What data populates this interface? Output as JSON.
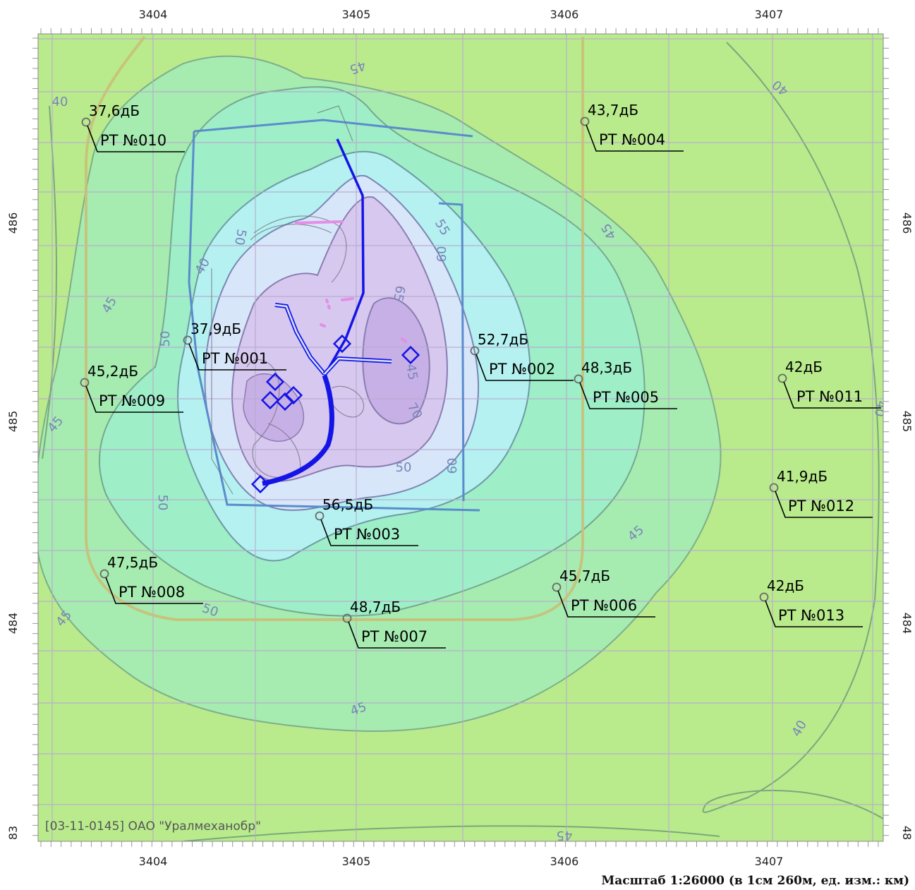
{
  "map": {
    "x_ticks_top": [
      "3404",
      "3405",
      "3406",
      "3407"
    ],
    "x_ticks_bottom": [
      "3404",
      "3405",
      "3406",
      "3407"
    ],
    "y_ticks_left": [
      "486",
      "485",
      "484",
      "83"
    ],
    "y_ticks_right": [
      "486",
      "485",
      "484",
      "48"
    ],
    "contour_labels": [
      "45",
      "40",
      "50",
      "55",
      "60",
      "65",
      "70",
      "45",
      "50",
      "40",
      "45",
      "50",
      "60",
      "50",
      "45",
      "45",
      "50",
      "45",
      "45",
      "40",
      "45",
      "40",
      "40",
      "45"
    ],
    "points": [
      {
        "value": "37,6дБ",
        "name": "РТ №010"
      },
      {
        "value": "43,7дБ",
        "name": "РТ №004"
      },
      {
        "value": "37,9дБ",
        "name": "РТ №001"
      },
      {
        "value": "52,7дБ",
        "name": "РТ №002"
      },
      {
        "value": "48,3дБ",
        "name": "РТ №005"
      },
      {
        "value": "45,2дБ",
        "name": "РТ №009"
      },
      {
        "value": "42дБ",
        "name": "РТ №011"
      },
      {
        "value": "41,9дБ",
        "name": "РТ №012"
      },
      {
        "value": "56,5дБ",
        "name": "РТ №003"
      },
      {
        "value": "47,5дБ",
        "name": "РТ №008"
      },
      {
        "value": "45,7дБ",
        "name": "РТ №006"
      },
      {
        "value": "48,7дБ",
        "name": "РТ №007"
      },
      {
        "value": "42дБ",
        "name": "РТ №013"
      }
    ],
    "footer_label": "[03-11-0145] ОАО \"Уралмеханобр\"",
    "scale_text": "Масштаб 1:26000 (в 1см 260м, ед. изм.: км)"
  },
  "colors": {
    "outer_green": "#b9eb8d",
    "zone_45": "#a6ecb0",
    "zone_50": "#9eeec8",
    "zone_55": "#b4f1f0",
    "zone_60": "#d8e6fa",
    "zone_65": "#d6c8ee",
    "zone_70": "#c7b0e6",
    "grid": "#b9a9cf",
    "source_line": "#1414e6",
    "boundary": "#5a8ccc"
  }
}
